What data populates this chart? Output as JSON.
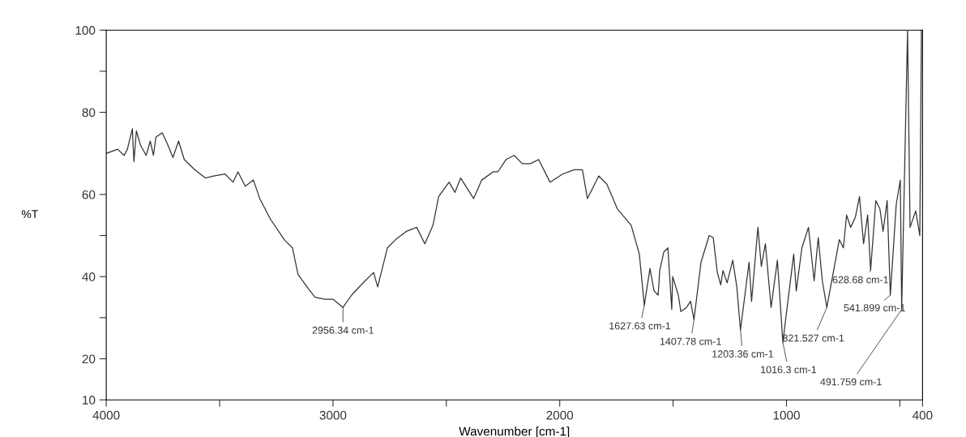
{
  "chart_data": {
    "type": "line",
    "xlabel": "Wavenumber [cm-1]",
    "ylabel": "%T",
    "xlim": [
      4000,
      400
    ],
    "ylim": [
      10,
      100
    ],
    "xticks": [
      4000,
      {
        "value": 3500,
        "label": null
      },
      3000,
      {
        "value": 2500,
        "label": null
      },
      2000,
      {
        "value": 1500,
        "label": null
      },
      1000,
      {
        "value": 500,
        "label": null
      },
      400
    ],
    "yticks": [
      10,
      20,
      {
        "value": 30,
        "label": null
      },
      40,
      {
        "value": 50,
        "label": null
      },
      60,
      80,
      {
        "value": 90,
        "label": null
      },
      100
    ],
    "grid": false,
    "legend": false,
    "marker": "none",
    "line_style": "solid",
    "series": [
      {
        "color": "#333333",
        "x": [
          4000,
          3950,
          3921,
          3907,
          3885,
          3878,
          3867,
          3849,
          3824,
          3806,
          3792,
          3781,
          3753,
          3728,
          3706,
          3681,
          3656,
          3609,
          3563,
          3527,
          3477,
          3441,
          3419,
          3387,
          3351,
          3323,
          3276,
          3215,
          3179,
          3154,
          3108,
          3079,
          3036,
          3000,
          2956,
          2918,
          2867,
          2821,
          2803,
          2760,
          2724,
          2677,
          2631,
          2595,
          2559,
          2534,
          2488,
          2462,
          2437,
          2380,
          2344,
          2294,
          2273,
          2237,
          2201,
          2165,
          2129,
          2093,
          2043,
          1986,
          1936,
          1900,
          1878,
          1828,
          1792,
          1746,
          1685,
          1649,
          1627,
          1602,
          1584,
          1566,
          1559,
          1541,
          1523,
          1506,
          1502,
          1477,
          1466,
          1441,
          1423,
          1408,
          1377,
          1341,
          1323,
          1305,
          1290,
          1280,
          1262,
          1237,
          1219,
          1203,
          1165,
          1154,
          1126,
          1111,
          1093,
          1068,
          1040,
          1016,
          986,
          968,
          957,
          932,
          903,
          878,
          860,
          842,
          822,
          767,
          749,
          735,
          717,
          696,
          678,
          660,
          642,
          629,
          606,
          588,
          574,
          556,
          542,
          516,
          498,
          492,
          466,
          455,
          430,
          412,
          405,
          400
        ],
        "values": [
          70,
          71,
          69.5,
          71,
          76,
          68,
          75.5,
          72,
          69.5,
          73,
          69.5,
          74,
          75,
          72,
          69,
          73,
          68.5,
          66,
          64,
          64.5,
          65,
          63,
          65.5,
          62,
          63.5,
          59,
          54,
          49,
          47,
          40.5,
          37,
          35,
          34.5,
          34.5,
          32.5,
          35.5,
          38.5,
          41,
          37.5,
          47,
          49,
          51,
          52,
          48,
          52.5,
          59.5,
          63,
          60.5,
          64,
          59,
          63.5,
          65.5,
          65.5,
          68.5,
          69.5,
          67.5,
          67.5,
          68.5,
          63,
          65,
          66,
          66,
          59,
          64.5,
          62.5,
          56.5,
          52.5,
          45.5,
          33,
          42,
          36.5,
          35.5,
          41.5,
          46,
          47,
          32,
          40,
          35.5,
          31.5,
          32.5,
          34,
          29.5,
          43.5,
          50,
          49.5,
          41,
          38,
          41.5,
          38.5,
          44,
          37.5,
          27,
          43.5,
          34,
          52,
          42.5,
          48,
          32.5,
          44,
          24,
          37.5,
          45.5,
          36.5,
          47,
          52,
          39,
          49.5,
          39,
          32.5,
          49,
          47,
          55,
          52,
          54.5,
          59.5,
          48,
          55,
          41.5,
          58.5,
          56.5,
          51,
          58.5,
          35.5,
          57.5,
          63.5,
          32,
          100,
          52,
          56,
          50,
          100,
          100
        ]
      }
    ],
    "annotations": [
      {
        "text": "2956.34 cm-1",
        "x": 2956,
        "y": 32.5
      },
      {
        "text": "1627.63 cm-1",
        "x": 1627,
        "y": 33
      },
      {
        "text": "1407.78 cm-1",
        "x": 1408,
        "y": 29.5
      },
      {
        "text": "1203.36 cm-1",
        "x": 1203,
        "y": 27
      },
      {
        "text": "1016.3 cm-1",
        "x": 1016,
        "y": 24
      },
      {
        "text": "821.527 cm-1",
        "x": 822,
        "y": 32.5
      },
      {
        "text": "628.68 cm-1",
        "x": 629,
        "y": 41.5
      },
      {
        "text": "541.899 cm-1",
        "x": 542,
        "y": 35.5
      },
      {
        "text": "491.759 cm-1",
        "x": 492,
        "y": 32
      }
    ]
  }
}
